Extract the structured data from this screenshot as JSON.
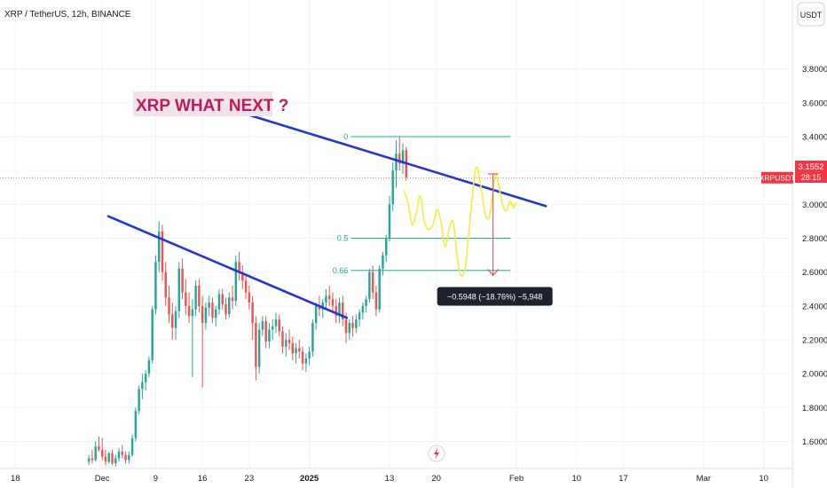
{
  "header": {
    "symbol_title": "XRP / TetherUS, 12h, BINANCE"
  },
  "price_scale": {
    "currency_label": "USDT"
  },
  "annotation": {
    "text": "XRP WHAT NEXT ?"
  },
  "last_price": {
    "symbol": "XRPUSDT",
    "price": "3.1552",
    "countdown": "28:15"
  },
  "measure": {
    "label": "−0.5948 (−18.76%) −5,948"
  },
  "footer": {
    "flash_icon": "lightning-icon"
  },
  "colors": {
    "up": "#26a69a",
    "down": "#ef5350",
    "trendline": "#2236d3",
    "fib": "#22ab94",
    "projection": "#f5ec42",
    "measure": "#f23645",
    "annotation_bg": "#f1e3ea",
    "annotation_text": "#c2185b"
  },
  "chart_data": {
    "type": "candlestick",
    "symbol": "XRP / TetherUS",
    "interval": "12h",
    "exchange": "BINANCE",
    "y_ticks": [
      "1.6000",
      "1.8000",
      "2.0000",
      "2.2000",
      "2.4000",
      "2.6000",
      "2.8000",
      "3.0000",
      "3.2000",
      "3.4000",
      "3.6000",
      "3.8000"
    ],
    "ylim": [
      1.44,
      4.05
    ],
    "x_ticks": [
      {
        "label": "18",
        "day": -13
      },
      {
        "label": "Dec",
        "day": 0
      },
      {
        "label": "9",
        "day": 8
      },
      {
        "label": "16",
        "day": 15
      },
      {
        "label": "23",
        "day": 22
      },
      {
        "label": "2025",
        "day": 31
      },
      {
        "label": "13",
        "day": 43
      },
      {
        "label": "20",
        "day": 50
      },
      {
        "label": "Feb",
        "day": 62
      },
      {
        "label": "10",
        "day": 71
      },
      {
        "label": "17",
        "day": 78
      },
      {
        "label": "Mar",
        "day": 90
      },
      {
        "label": "10",
        "day": 99
      }
    ],
    "xlim": [
      -15.3,
      103.3
    ],
    "candles": [
      [
        1.48,
        1.52,
        1.46,
        1.5
      ],
      [
        1.5,
        1.55,
        1.47,
        1.49
      ],
      [
        1.49,
        1.6,
        1.48,
        1.57
      ],
      [
        1.57,
        1.63,
        1.54,
        1.55
      ],
      [
        1.55,
        1.62,
        1.49,
        1.51
      ],
      [
        1.51,
        1.55,
        1.46,
        1.48
      ],
      [
        1.48,
        1.54,
        1.47,
        1.53
      ],
      [
        1.53,
        1.55,
        1.46,
        1.47
      ],
      [
        1.47,
        1.52,
        1.45,
        1.5
      ],
      [
        1.5,
        1.56,
        1.48,
        1.54
      ],
      [
        1.54,
        1.58,
        1.5,
        1.52
      ],
      [
        1.52,
        1.54,
        1.47,
        1.49
      ],
      [
        1.49,
        1.54,
        1.47,
        1.52
      ],
      [
        1.52,
        1.64,
        1.51,
        1.62
      ],
      [
        1.62,
        1.8,
        1.6,
        1.78
      ],
      [
        1.78,
        1.93,
        1.76,
        1.91
      ],
      [
        1.91,
        2.0,
        1.85,
        1.95
      ],
      [
        1.95,
        2.02,
        1.9,
        2.0
      ],
      [
        2.0,
        2.1,
        1.98,
        2.08
      ],
      [
        2.08,
        2.4,
        2.06,
        2.38
      ],
      [
        2.38,
        2.7,
        2.35,
        2.66
      ],
      [
        2.66,
        2.9,
        2.6,
        2.84
      ],
      [
        2.84,
        2.88,
        2.55,
        2.6
      ],
      [
        2.6,
        2.66,
        2.4,
        2.45
      ],
      [
        2.45,
        2.52,
        2.3,
        2.35
      ],
      [
        2.35,
        2.42,
        2.2,
        2.27
      ],
      [
        2.27,
        2.4,
        2.2,
        2.37
      ],
      [
        2.37,
        2.66,
        2.33,
        2.62
      ],
      [
        2.62,
        2.68,
        2.44,
        2.48
      ],
      [
        2.48,
        2.56,
        2.35,
        2.4
      ],
      [
        2.4,
        2.48,
        2.3,
        2.34
      ],
      [
        2.34,
        2.44,
        1.98,
        2.38
      ],
      [
        2.38,
        2.55,
        2.34,
        2.52
      ],
      [
        2.52,
        2.56,
        2.36,
        2.4
      ],
      [
        2.4,
        2.46,
        1.92,
        2.3
      ],
      [
        2.3,
        2.42,
        2.26,
        2.39
      ],
      [
        2.39,
        2.46,
        2.34,
        2.42
      ],
      [
        2.42,
        2.45,
        2.3,
        2.33
      ],
      [
        2.33,
        2.4,
        2.28,
        2.38
      ],
      [
        2.38,
        2.5,
        2.35,
        2.47
      ],
      [
        2.47,
        2.5,
        2.38,
        2.41
      ],
      [
        2.41,
        2.45,
        2.32,
        2.35
      ],
      [
        2.35,
        2.48,
        2.33,
        2.45
      ],
      [
        2.45,
        2.52,
        2.38,
        2.43
      ],
      [
        2.43,
        2.7,
        2.4,
        2.66
      ],
      [
        2.66,
        2.72,
        2.55,
        2.6
      ],
      [
        2.6,
        2.64,
        2.5,
        2.55
      ],
      [
        2.55,
        2.58,
        2.44,
        2.48
      ],
      [
        2.48,
        2.52,
        2.38,
        2.42
      ],
      [
        2.42,
        2.46,
        2.2,
        2.3
      ],
      [
        2.3,
        2.34,
        1.96,
        2.04
      ],
      [
        2.04,
        2.3,
        2.0,
        2.26
      ],
      [
        2.26,
        2.34,
        2.22,
        2.31
      ],
      [
        2.31,
        2.34,
        2.15,
        2.19
      ],
      [
        2.19,
        2.3,
        2.15,
        2.26
      ],
      [
        2.26,
        2.32,
        2.2,
        2.28
      ],
      [
        2.28,
        2.36,
        2.24,
        2.32
      ],
      [
        2.32,
        2.35,
        2.22,
        2.25
      ],
      [
        2.25,
        2.28,
        2.12,
        2.16
      ],
      [
        2.16,
        2.24,
        2.1,
        2.2
      ],
      [
        2.2,
        2.26,
        2.14,
        2.18
      ],
      [
        2.18,
        2.22,
        2.08,
        2.12
      ],
      [
        2.12,
        2.18,
        2.06,
        2.15
      ],
      [
        2.15,
        2.2,
        2.09,
        2.13
      ],
      [
        2.13,
        2.16,
        2.02,
        2.06
      ],
      [
        2.06,
        2.12,
        2.01,
        2.09
      ],
      [
        2.09,
        2.16,
        2.05,
        2.13
      ],
      [
        2.13,
        2.32,
        2.1,
        2.3
      ],
      [
        2.3,
        2.42,
        2.26,
        2.4
      ],
      [
        2.4,
        2.46,
        2.34,
        2.38
      ],
      [
        2.38,
        2.44,
        2.33,
        2.42
      ],
      [
        2.42,
        2.5,
        2.38,
        2.46
      ],
      [
        2.46,
        2.52,
        2.4,
        2.44
      ],
      [
        2.44,
        2.48,
        2.36,
        2.4
      ],
      [
        2.4,
        2.44,
        2.3,
        2.34
      ],
      [
        2.34,
        2.45,
        2.3,
        2.42
      ],
      [
        2.42,
        2.46,
        2.28,
        2.32
      ],
      [
        2.32,
        2.36,
        2.18,
        2.24
      ],
      [
        2.24,
        2.32,
        2.2,
        2.3
      ],
      [
        2.3,
        2.34,
        2.22,
        2.27
      ],
      [
        2.27,
        2.35,
        2.24,
        2.32
      ],
      [
        2.32,
        2.38,
        2.28,
        2.36
      ],
      [
        2.36,
        2.42,
        2.32,
        2.4
      ],
      [
        2.4,
        2.46,
        2.36,
        2.44
      ],
      [
        2.44,
        2.62,
        2.42,
        2.6
      ],
      [
        2.6,
        2.64,
        2.44,
        2.48
      ],
      [
        2.48,
        2.52,
        2.34,
        2.38
      ],
      [
        2.38,
        2.64,
        2.36,
        2.62
      ],
      [
        2.62,
        2.72,
        2.58,
        2.7
      ],
      [
        2.7,
        2.82,
        2.66,
        2.8
      ],
      [
        2.8,
        3.05,
        2.78,
        3.0
      ],
      [
        3.0,
        3.25,
        2.96,
        3.2
      ],
      [
        3.2,
        3.38,
        3.1,
        3.3
      ],
      [
        3.3,
        3.4,
        3.2,
        3.24
      ],
      [
        3.24,
        3.36,
        3.18,
        3.32
      ],
      [
        3.32,
        3.34,
        3.14,
        3.16
      ]
    ],
    "trendlines": [
      {
        "name": "descending-resistance-upper",
        "x": [
          15.2,
          66.4
        ],
        "y": [
          3.61,
          2.99
        ]
      },
      {
        "name": "descending-resistance-lower",
        "x": [
          0.9,
          36.6
        ],
        "y": [
          2.93,
          2.33
        ]
      }
    ],
    "fib_levels": [
      {
        "label": "0",
        "price": 3.4
      },
      {
        "label": "0.5",
        "price": 2.8
      },
      {
        "label": "0.66",
        "price": 2.61
      }
    ],
    "fib_x": [
      37.2,
      61.1
    ],
    "projection": {
      "x": [
        45.2,
        45.8,
        46.4,
        47.0,
        47.6,
        48.2,
        48.8,
        49.5,
        50.1,
        50.7,
        51.3,
        51.9,
        52.5,
        53.1,
        53.7,
        54.3,
        54.8,
        55.4,
        56.0,
        56.7,
        57.3,
        57.9,
        58.4,
        58.9,
        59.4,
        59.9,
        60.5,
        61.0,
        61.6
      ],
      "y": [
        3.08,
        3.0,
        2.88,
        2.95,
        3.05,
        2.9,
        2.85,
        2.88,
        2.97,
        2.9,
        2.75,
        2.85,
        2.9,
        2.7,
        2.58,
        2.62,
        2.8,
        3.05,
        3.22,
        3.1,
        2.95,
        2.92,
        3.05,
        3.18,
        3.1,
        3.0,
        2.96,
        3.02,
        2.98
      ]
    },
    "measure_range": {
      "x": 58.5,
      "from": 3.18,
      "to": 2.58
    }
  }
}
